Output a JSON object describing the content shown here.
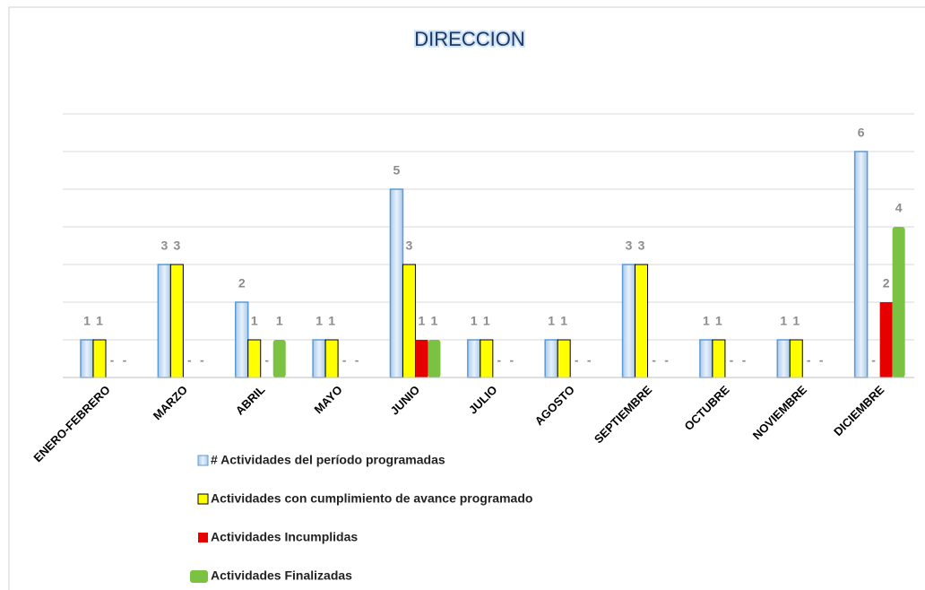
{
  "chart_data": {
    "type": "bar",
    "title": "DIRECCION",
    "categories": [
      "ENERO-FEBRERO",
      "MARZO",
      "ABRIL",
      "MAYO",
      "JUNIO",
      "JULIO",
      "AGOSTO",
      "SEPTIEMBRE",
      "OCTUBRE",
      "NOVIEMBRE",
      "DICIEMBRE"
    ],
    "series": [
      {
        "name": "# Actividades del período programadas",
        "color": "#dbe9f7",
        "values": [
          1,
          3,
          2,
          1,
          5,
          1,
          1,
          3,
          1,
          1,
          6
        ]
      },
      {
        "name": "Actividades con cumplimiento de avance programado",
        "color": "#ffff00",
        "values": [
          1,
          3,
          1,
          1,
          3,
          1,
          1,
          3,
          1,
          1,
          0
        ],
        "value_labels": [
          "1",
          "3",
          "1",
          "1",
          "3",
          "1",
          "1",
          "3",
          "1",
          "1",
          "-"
        ]
      },
      {
        "name": "Actividades Incumplidas",
        "color": "#e60000",
        "values": [
          0,
          0,
          0,
          0,
          1,
          0,
          0,
          0,
          0,
          0,
          2
        ],
        "value_labels": [
          "-",
          "-",
          "-",
          "-",
          "1",
          "-",
          "-",
          "-",
          "-",
          "-",
          "2"
        ]
      },
      {
        "name": "Actividades Finalizadas",
        "color": "#7cc242",
        "values": [
          0,
          0,
          1,
          0,
          1,
          0,
          0,
          0,
          0,
          0,
          4
        ],
        "value_labels": [
          "-",
          "-",
          "1",
          "-",
          "1",
          "-",
          "-",
          "-",
          "-",
          "-",
          "4"
        ]
      }
    ],
    "ylim": [
      0,
      7
    ],
    "yticks": [
      0,
      1,
      2,
      3,
      4,
      5,
      6,
      7
    ],
    "grid": true
  }
}
